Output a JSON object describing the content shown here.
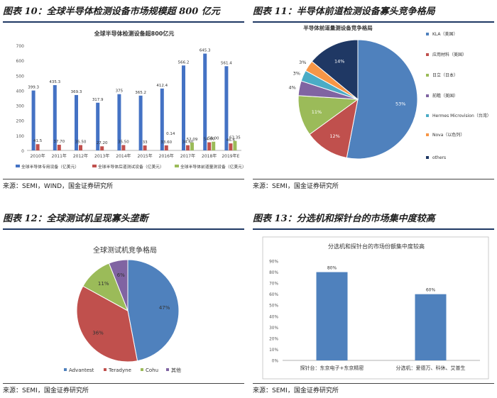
{
  "panels": {
    "p10": {
      "heading": "图表 10：全球半导体检测设备市场规模超 800 亿元",
      "source": "来源：SEMI，WIND，国金证券研究所"
    },
    "p11": {
      "heading": "图表 11：半导体前道检测设备寡头竞争格局",
      "source": "来源：SEMI，国金证券研究所"
    },
    "p12": {
      "heading": "图表 12：全球测试机呈现寡头垄断",
      "source": "来源：SEMI，国金证券研究所"
    },
    "p13": {
      "heading": "图表 13：分选机和探针台的市场集中度较高",
      "source": "来源：SEMI，国金证券研究所"
    }
  },
  "chart_data": [
    {
      "type": "bar",
      "title": "全球半导体检测设备超800亿元",
      "categories": [
        "2010年",
        "2011年",
        "2012年",
        "2013年",
        "2014年",
        "2015年",
        "2016年",
        "2017年",
        "2018年",
        "2019年E"
      ],
      "series": [
        {
          "name": "全球半导体专用设备（亿美元）",
          "color": "#4472c4",
          "values": [
            399.3,
            435.3,
            369.3,
            317.9,
            375,
            365.2,
            412.4,
            566.2,
            645.3,
            561.4
          ],
          "labels": [
            "399.3",
            "435.3",
            "369.3",
            "317.9",
            "375",
            "365.2",
            "412.4",
            "566.2",
            "645.3",
            "561.4"
          ]
        },
        {
          "name": "全球半导体后道测试设备（亿美元）",
          "color": "#c0504d",
          "values": [
            41.5,
            37.7,
            35.5,
            27.2,
            35.5,
            33,
            33.6,
            34.6,
            54,
            46.6
          ],
          "labels": [
            "41.5",
            "37.70",
            "35.50",
            "27.20",
            "35.50",
            "33",
            "33.60",
            "34.60",
            "54.00",
            "46.6"
          ]
        },
        {
          "name": "全球半导体前道量测设备（亿美元）",
          "color": "#9bbb59",
          "values": [
            0,
            0,
            0,
            0,
            0,
            0,
            0.14,
            52.09,
            58,
            63.35
          ],
          "labels": [
            "",
            "",
            "",
            "",
            "",
            "",
            "0.14",
            "52.09",
            "58.00",
            "63.35"
          ]
        }
      ],
      "yticks": [
        "0",
        "100",
        "200",
        "300",
        "400",
        "500",
        "600",
        "700"
      ],
      "ylim": [
        0,
        700
      ],
      "grid": false,
      "legend": "bottom"
    },
    {
      "type": "pie",
      "title": "半导体前道量测设备竞争格局",
      "slices": [
        {
          "name": "KLA（美国）",
          "value": 53,
          "label": "53%",
          "color": "#4f81bd"
        },
        {
          "name": "应用材料（美国）",
          "value": 12,
          "label": "12%",
          "color": "#c0504d"
        },
        {
          "name": "日立（日本）",
          "value": 11,
          "label": "11%",
          "color": "#9bbb59"
        },
        {
          "name": "前瞻（美国）",
          "value": 4,
          "label": "4%",
          "color": "#8064a2"
        },
        {
          "name": "Hermes Microvision（台湾）",
          "value": 3,
          "label": "3%",
          "color": "#4bacc6"
        },
        {
          "name": "Nova（以色列）",
          "value": 3,
          "label": "3%",
          "color": "#f79646"
        },
        {
          "name": "others",
          "value": 14,
          "label": "14%",
          "color": "#1f3864"
        }
      ],
      "legend": "right"
    },
    {
      "type": "pie",
      "title": "全球测试机竞争格局",
      "slices": [
        {
          "name": "Advantest",
          "value": 47,
          "label": "47%",
          "color": "#4f81bd"
        },
        {
          "name": "Teradyne",
          "value": 36,
          "label": "36%",
          "color": "#c0504d"
        },
        {
          "name": "Cohu",
          "value": 11,
          "label": "11%",
          "color": "#9bbb59"
        },
        {
          "name": "其他",
          "value": 6,
          "label": "6%",
          "color": "#8064a2"
        }
      ],
      "legend": "bottom"
    },
    {
      "type": "bar",
      "title": "分选机和探针台的市场份额集中度较高",
      "categories": [
        "探针台：东京电子+东京精密",
        "分选机：爱德万、科休、艾普生"
      ],
      "values": [
        80,
        60
      ],
      "labels": [
        "80%",
        "60%"
      ],
      "color": "#4f81bd",
      "yticks": [
        "0%",
        "10%",
        "20%",
        "30%",
        "40%",
        "50%",
        "60%",
        "70%",
        "80%",
        "90%"
      ],
      "ylim": [
        0,
        90
      ],
      "grid": false,
      "legend": "none"
    }
  ]
}
